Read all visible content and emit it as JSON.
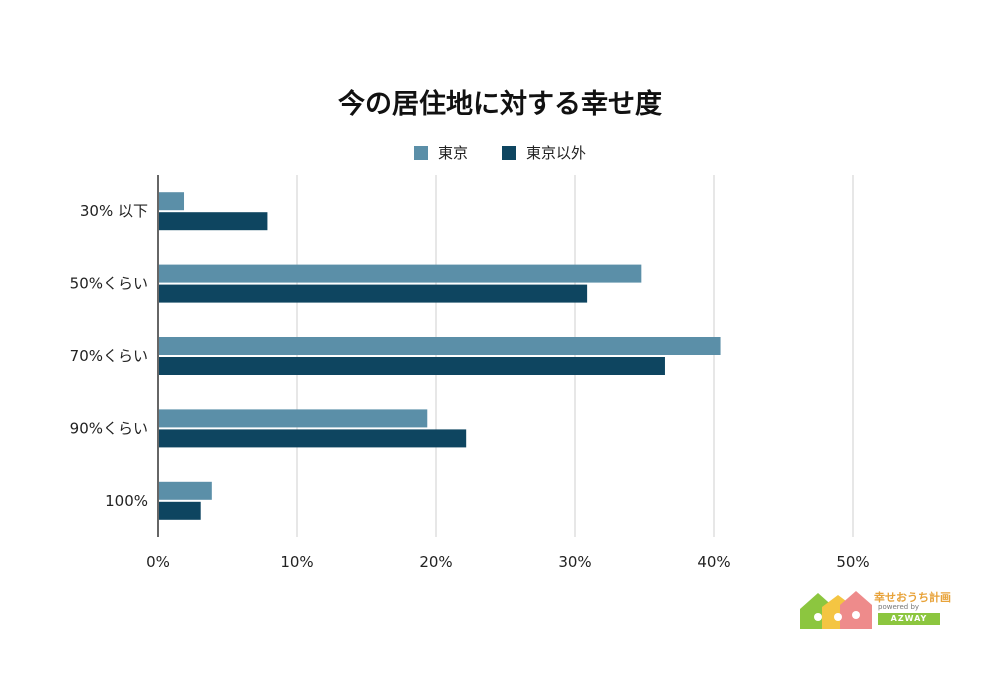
{
  "chart_data": {
    "type": "bar",
    "orientation": "horizontal",
    "title": "今の居住地に対する幸せ度",
    "categories": [
      "30% 以下",
      "50%くらい",
      "70%くらい",
      "90%くらい",
      "100%"
    ],
    "series": [
      {
        "name": "東京",
        "color": "#5b8fa8",
        "values": [
          1.8,
          34.7,
          40.4,
          19.3,
          3.8
        ]
      },
      {
        "name": "東京以外",
        "color": "#0e4560",
        "values": [
          7.8,
          30.8,
          36.4,
          22.1,
          3.0
        ]
      }
    ],
    "x_ticks": [
      "0%",
      "10%",
      "20%",
      "30%",
      "40%",
      "50%"
    ],
    "xlim": [
      0,
      50
    ],
    "grid": "vertical",
    "legend_position": "top-center"
  },
  "logo": {
    "brand": "幸せおうち計画",
    "sub": "powered by",
    "badge": "AZWAY"
  }
}
